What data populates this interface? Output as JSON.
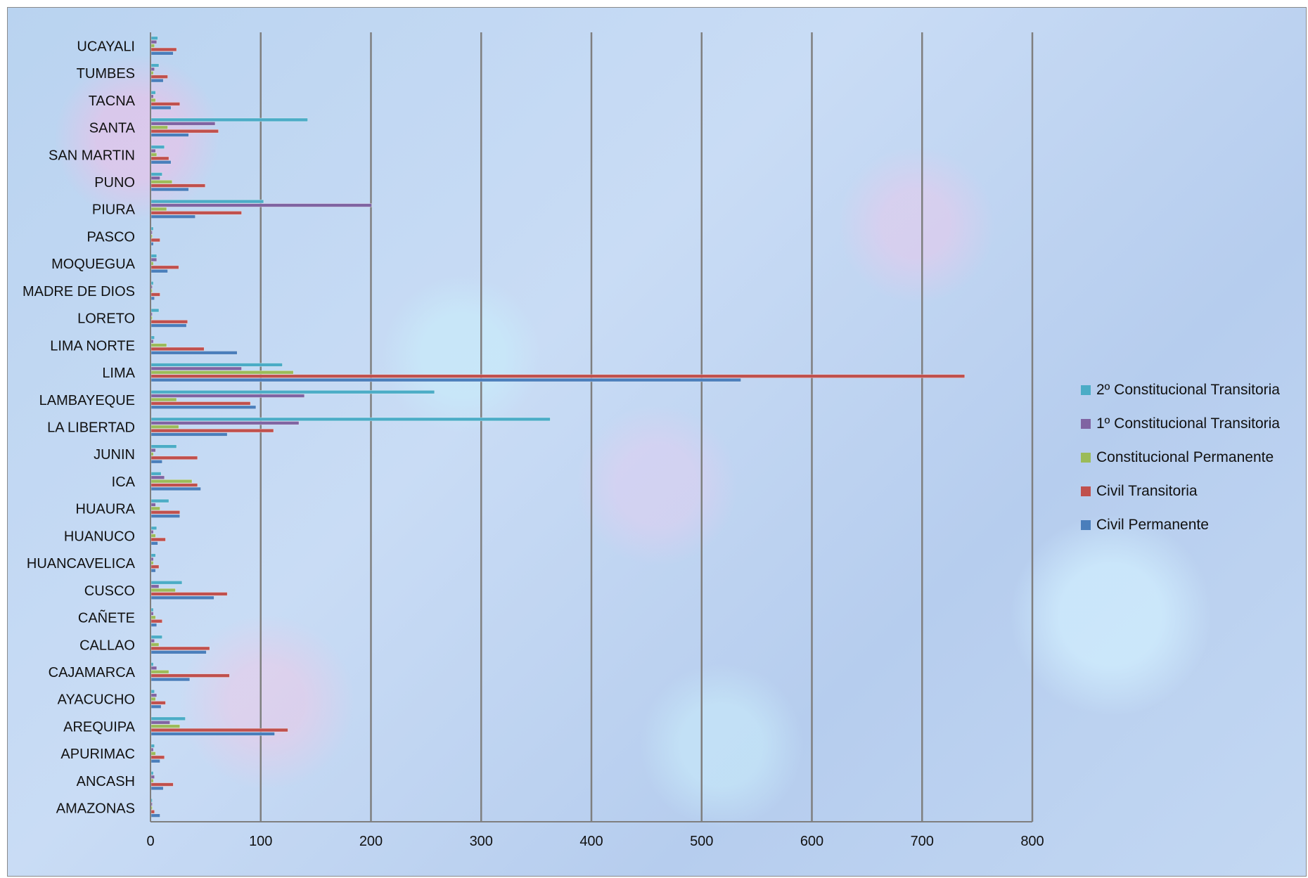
{
  "chart_data": {
    "type": "bar",
    "orientation": "horizontal",
    "title": "",
    "xlabel": "",
    "ylabel": "",
    "xlim": [
      0,
      800
    ],
    "x_ticks": [
      0,
      100,
      200,
      300,
      400,
      500,
      600,
      700,
      800
    ],
    "grid": "vertical major gridlines",
    "legend_position": "right",
    "categories": [
      "AMAZONAS",
      "ANCASH",
      "APURIMAC",
      "AREQUIPA",
      "AYACUCHO",
      "CAJAMARCA",
      "CALLAO",
      "CAÑETE",
      "CUSCO",
      "HUANCAVELICA",
      "HUANUCO",
      "HUAURA",
      "ICA",
      "JUNIN",
      "LA LIBERTAD",
      "LAMBAYEQUE",
      "LIMA",
      "LIMA NORTE",
      "LORETO",
      "MADRE DE DIOS",
      "MOQUEGUA",
      "PASCO",
      "PIURA",
      "PUNO",
      "SAN MARTIN",
      "SANTA",
      "TACNA",
      "TUMBES",
      "UCAYALI"
    ],
    "series": [
      {
        "name": "Civil Permanente",
        "color": "#4a7ebb",
        "values": [
          8,
          11,
          8,
          112,
          9,
          35,
          50,
          5,
          57,
          4,
          6,
          26,
          45,
          10,
          69,
          95,
          535,
          78,
          32,
          3,
          15,
          2,
          40,
          34,
          18,
          34,
          18,
          11,
          20
        ]
      },
      {
        "name": "Civil Transitoria",
        "color": "#c0504d",
        "values": [
          3,
          20,
          12,
          124,
          13,
          71,
          53,
          10,
          69,
          7,
          13,
          26,
          42,
          42,
          111,
          90,
          738,
          48,
          33,
          8,
          25,
          8,
          82,
          49,
          16,
          61,
          26,
          15,
          23
        ]
      },
      {
        "name": "Constitucional Permanente",
        "color": "#9bbb59",
        "values": [
          1,
          2,
          4,
          26,
          4,
          16,
          7,
          4,
          22,
          2,
          4,
          8,
          37,
          2,
          25,
          23,
          129,
          14,
          1,
          1,
          2,
          1,
          14,
          19,
          5,
          15,
          4,
          2,
          3
        ]
      },
      {
        "name": "1º Constitucional Transitoria",
        "color": "#8064a2",
        "values": [
          1,
          3,
          2,
          17,
          5,
          5,
          3,
          2,
          7,
          2,
          2,
          4,
          12,
          4,
          134,
          139,
          82,
          2,
          1,
          1,
          5,
          1,
          200,
          8,
          4,
          58,
          2,
          3,
          5
        ]
      },
      {
        "name": "2º Constitucional Transitoria",
        "color": "#4bacc6",
        "values": [
          1,
          2,
          3,
          31,
          3,
          2,
          10,
          2,
          28,
          4,
          5,
          16,
          9,
          23,
          362,
          257,
          119,
          3,
          7,
          2,
          5,
          2,
          102,
          10,
          12,
          142,
          4,
          7,
          6
        ]
      }
    ]
  }
}
